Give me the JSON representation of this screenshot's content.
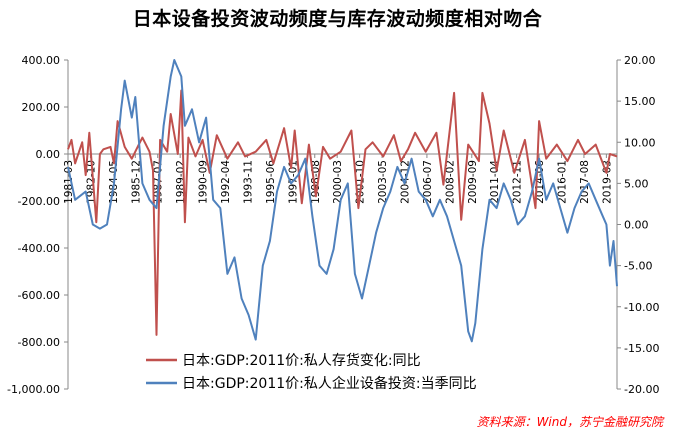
{
  "chart_data": {
    "type": "line",
    "title": "日本设备投资波动频度与库存波动频度相对吻合",
    "source": "资料来源：Wind，苏宁金融研究院",
    "left_axis": {
      "min": -1000,
      "max": 400,
      "step": 200,
      "tick_labels": [
        "400.00",
        "200.00",
        "0.00",
        "-200.00",
        "-400.00",
        "-600.00",
        "-800.00",
        "-1,000.00"
      ]
    },
    "right_axis": {
      "min": -20,
      "max": 20,
      "step": 5,
      "tick_labels": [
        "20.00",
        "15.00",
        "10.00",
        "5.00",
        "0.00",
        "-5.00",
        "-10.00",
        "-15.00",
        "-20.00"
      ]
    },
    "x_start": "1981-03",
    "x_end": "2019-12",
    "x_tick_labels": [
      "1981-03",
      "1982-10",
      "1984-05",
      "1985-12",
      "1987-07",
      "1989-02",
      "1990-09",
      "1992-04",
      "1993-11",
      "1995-06",
      "1997-01",
      "1998-08",
      "2000-03",
      "2001-10",
      "2003-05",
      "2004-12",
      "2006-07",
      "2008-02",
      "2009-09",
      "2011-04",
      "2012-11",
      "2014-06",
      "2016-01",
      "2017-08",
      "2019-03"
    ],
    "grid": false,
    "legend_position": "bottom-center",
    "series": [
      {
        "name": "日本:GDP:2011价:私人存货变化:同比",
        "axis": "left",
        "color": "#c0504d",
        "keypoints": [
          [
            "1981-03",
            20
          ],
          [
            "1981-06",
            60
          ],
          [
            "1981-09",
            -40
          ],
          [
            "1982-03",
            50
          ],
          [
            "1982-06",
            -90
          ],
          [
            "1982-09",
            90
          ],
          [
            "1983-03",
            -290
          ],
          [
            "1983-06",
            0
          ],
          [
            "1983-09",
            20
          ],
          [
            "1984-03",
            30
          ],
          [
            "1984-06",
            -40
          ],
          [
            "1984-09",
            140
          ],
          [
            "1985-03",
            30
          ],
          [
            "1985-09",
            -20
          ],
          [
            "1986-03",
            40
          ],
          [
            "1986-06",
            70
          ],
          [
            "1986-12",
            10
          ],
          [
            "1987-03",
            -70
          ],
          [
            "1987-06",
            -770
          ],
          [
            "1987-09",
            60
          ],
          [
            "1988-03",
            10
          ],
          [
            "1988-06",
            170
          ],
          [
            "1988-12",
            0
          ],
          [
            "1989-03",
            270
          ],
          [
            "1989-06",
            -290
          ],
          [
            "1989-09",
            70
          ],
          [
            "1990-03",
            -10
          ],
          [
            "1990-09",
            60
          ],
          [
            "1991-03",
            -80
          ],
          [
            "1991-09",
            80
          ],
          [
            "1992-06",
            -20
          ],
          [
            "1993-03",
            50
          ],
          [
            "1993-09",
            -10
          ],
          [
            "1994-06",
            10
          ],
          [
            "1995-03",
            60
          ],
          [
            "1995-09",
            -40
          ],
          [
            "1996-06",
            110
          ],
          [
            "1996-12",
            -60
          ],
          [
            "1997-03",
            100
          ],
          [
            "1997-09",
            -210
          ],
          [
            "1998-03",
            40
          ],
          [
            "1998-09",
            -180
          ],
          [
            "1999-03",
            30
          ],
          [
            "1999-09",
            -20
          ],
          [
            "2000-06",
            10
          ],
          [
            "2001-03",
            100
          ],
          [
            "2001-09",
            -230
          ],
          [
            "2002-03",
            20
          ],
          [
            "2002-09",
            50
          ],
          [
            "2003-06",
            -10
          ],
          [
            "2004-03",
            80
          ],
          [
            "2004-09",
            -30
          ],
          [
            "2005-03",
            20
          ],
          [
            "2005-09",
            90
          ],
          [
            "2006-06",
            10
          ],
          [
            "2007-03",
            90
          ],
          [
            "2007-09",
            -130
          ],
          [
            "2008-06",
            260
          ],
          [
            "2008-12",
            -280
          ],
          [
            "2009-06",
            40
          ],
          [
            "2010-03",
            -30
          ],
          [
            "2010-06",
            260
          ],
          [
            "2010-12",
            130
          ],
          [
            "2011-06",
            -70
          ],
          [
            "2011-12",
            100
          ],
          [
            "2012-09",
            -80
          ],
          [
            "2013-06",
            60
          ],
          [
            "2014-03",
            -230
          ],
          [
            "2014-06",
            140
          ],
          [
            "2014-12",
            -20
          ],
          [
            "2015-09",
            40
          ],
          [
            "2016-06",
            -30
          ],
          [
            "2017-03",
            60
          ],
          [
            "2017-09",
            0
          ],
          [
            "2018-06",
            40
          ],
          [
            "2019-03",
            -80
          ],
          [
            "2019-06",
            0
          ],
          [
            "2019-12",
            -10
          ]
        ]
      },
      {
        "name": "日本:GDP:2011价:私人企业设备投资:当季同比",
        "axis": "right",
        "color": "#4f81bd",
        "keypoints": [
          [
            "1981-03",
            7
          ],
          [
            "1981-09",
            3
          ],
          [
            "1982-06",
            4
          ],
          [
            "1982-12",
            0
          ],
          [
            "1983-06",
            -0.5
          ],
          [
            "1983-12",
            0
          ],
          [
            "1984-06",
            5
          ],
          [
            "1984-12",
            14
          ],
          [
            "1985-03",
            17.5
          ],
          [
            "1985-09",
            13
          ],
          [
            "1985-12",
            15.5
          ],
          [
            "1986-06",
            5
          ],
          [
            "1986-12",
            3
          ],
          [
            "1987-06",
            2
          ],
          [
            "1987-12",
            12
          ],
          [
            "1988-06",
            18
          ],
          [
            "1988-09",
            20
          ],
          [
            "1989-03",
            18
          ],
          [
            "1989-06",
            12
          ],
          [
            "1989-12",
            14
          ],
          [
            "1990-06",
            10
          ],
          [
            "1990-12",
            13
          ],
          [
            "1991-06",
            3
          ],
          [
            "1991-12",
            2
          ],
          [
            "1992-06",
            -6
          ],
          [
            "1992-12",
            -4
          ],
          [
            "1993-06",
            -9
          ],
          [
            "1993-12",
            -11
          ],
          [
            "1994-06",
            -14
          ],
          [
            "1994-12",
            -5
          ],
          [
            "1995-06",
            -2
          ],
          [
            "1995-12",
            4
          ],
          [
            "1996-06",
            7
          ],
          [
            "1996-12",
            5
          ],
          [
            "1997-06",
            6
          ],
          [
            "1997-12",
            8
          ],
          [
            "1998-06",
            1
          ],
          [
            "1998-12",
            -5
          ],
          [
            "1999-06",
            -6
          ],
          [
            "1999-12",
            -3
          ],
          [
            "2000-06",
            3
          ],
          [
            "2000-12",
            5
          ],
          [
            "2001-06",
            -6
          ],
          [
            "2001-12",
            -9
          ],
          [
            "2002-06",
            -5
          ],
          [
            "2002-12",
            -1
          ],
          [
            "2003-06",
            2
          ],
          [
            "2003-12",
            4
          ],
          [
            "2004-06",
            7
          ],
          [
            "2004-12",
            5
          ],
          [
            "2005-06",
            8
          ],
          [
            "2005-12",
            4
          ],
          [
            "2006-06",
            3
          ],
          [
            "2006-12",
            1
          ],
          [
            "2007-06",
            3
          ],
          [
            "2007-12",
            1
          ],
          [
            "2008-06",
            -2
          ],
          [
            "2008-12",
            -5
          ],
          [
            "2009-06",
            -13
          ],
          [
            "2009-09",
            -14.2
          ],
          [
            "2009-12",
            -12
          ],
          [
            "2010-06",
            -3
          ],
          [
            "2010-12",
            3
          ],
          [
            "2011-06",
            2
          ],
          [
            "2011-12",
            5
          ],
          [
            "2012-06",
            3
          ],
          [
            "2012-12",
            0
          ],
          [
            "2013-06",
            1
          ],
          [
            "2013-12",
            4
          ],
          [
            "2014-06",
            8
          ],
          [
            "2014-12",
            3
          ],
          [
            "2015-06",
            5
          ],
          [
            "2015-12",
            2
          ],
          [
            "2016-06",
            -1
          ],
          [
            "2016-12",
            2
          ],
          [
            "2017-06",
            4
          ],
          [
            "2017-12",
            5
          ],
          [
            "2018-06",
            3
          ],
          [
            "2018-12",
            1
          ],
          [
            "2019-03",
            0
          ],
          [
            "2019-06",
            -5
          ],
          [
            "2019-09",
            -2
          ],
          [
            "2019-12",
            -7.5
          ]
        ]
      }
    ]
  }
}
